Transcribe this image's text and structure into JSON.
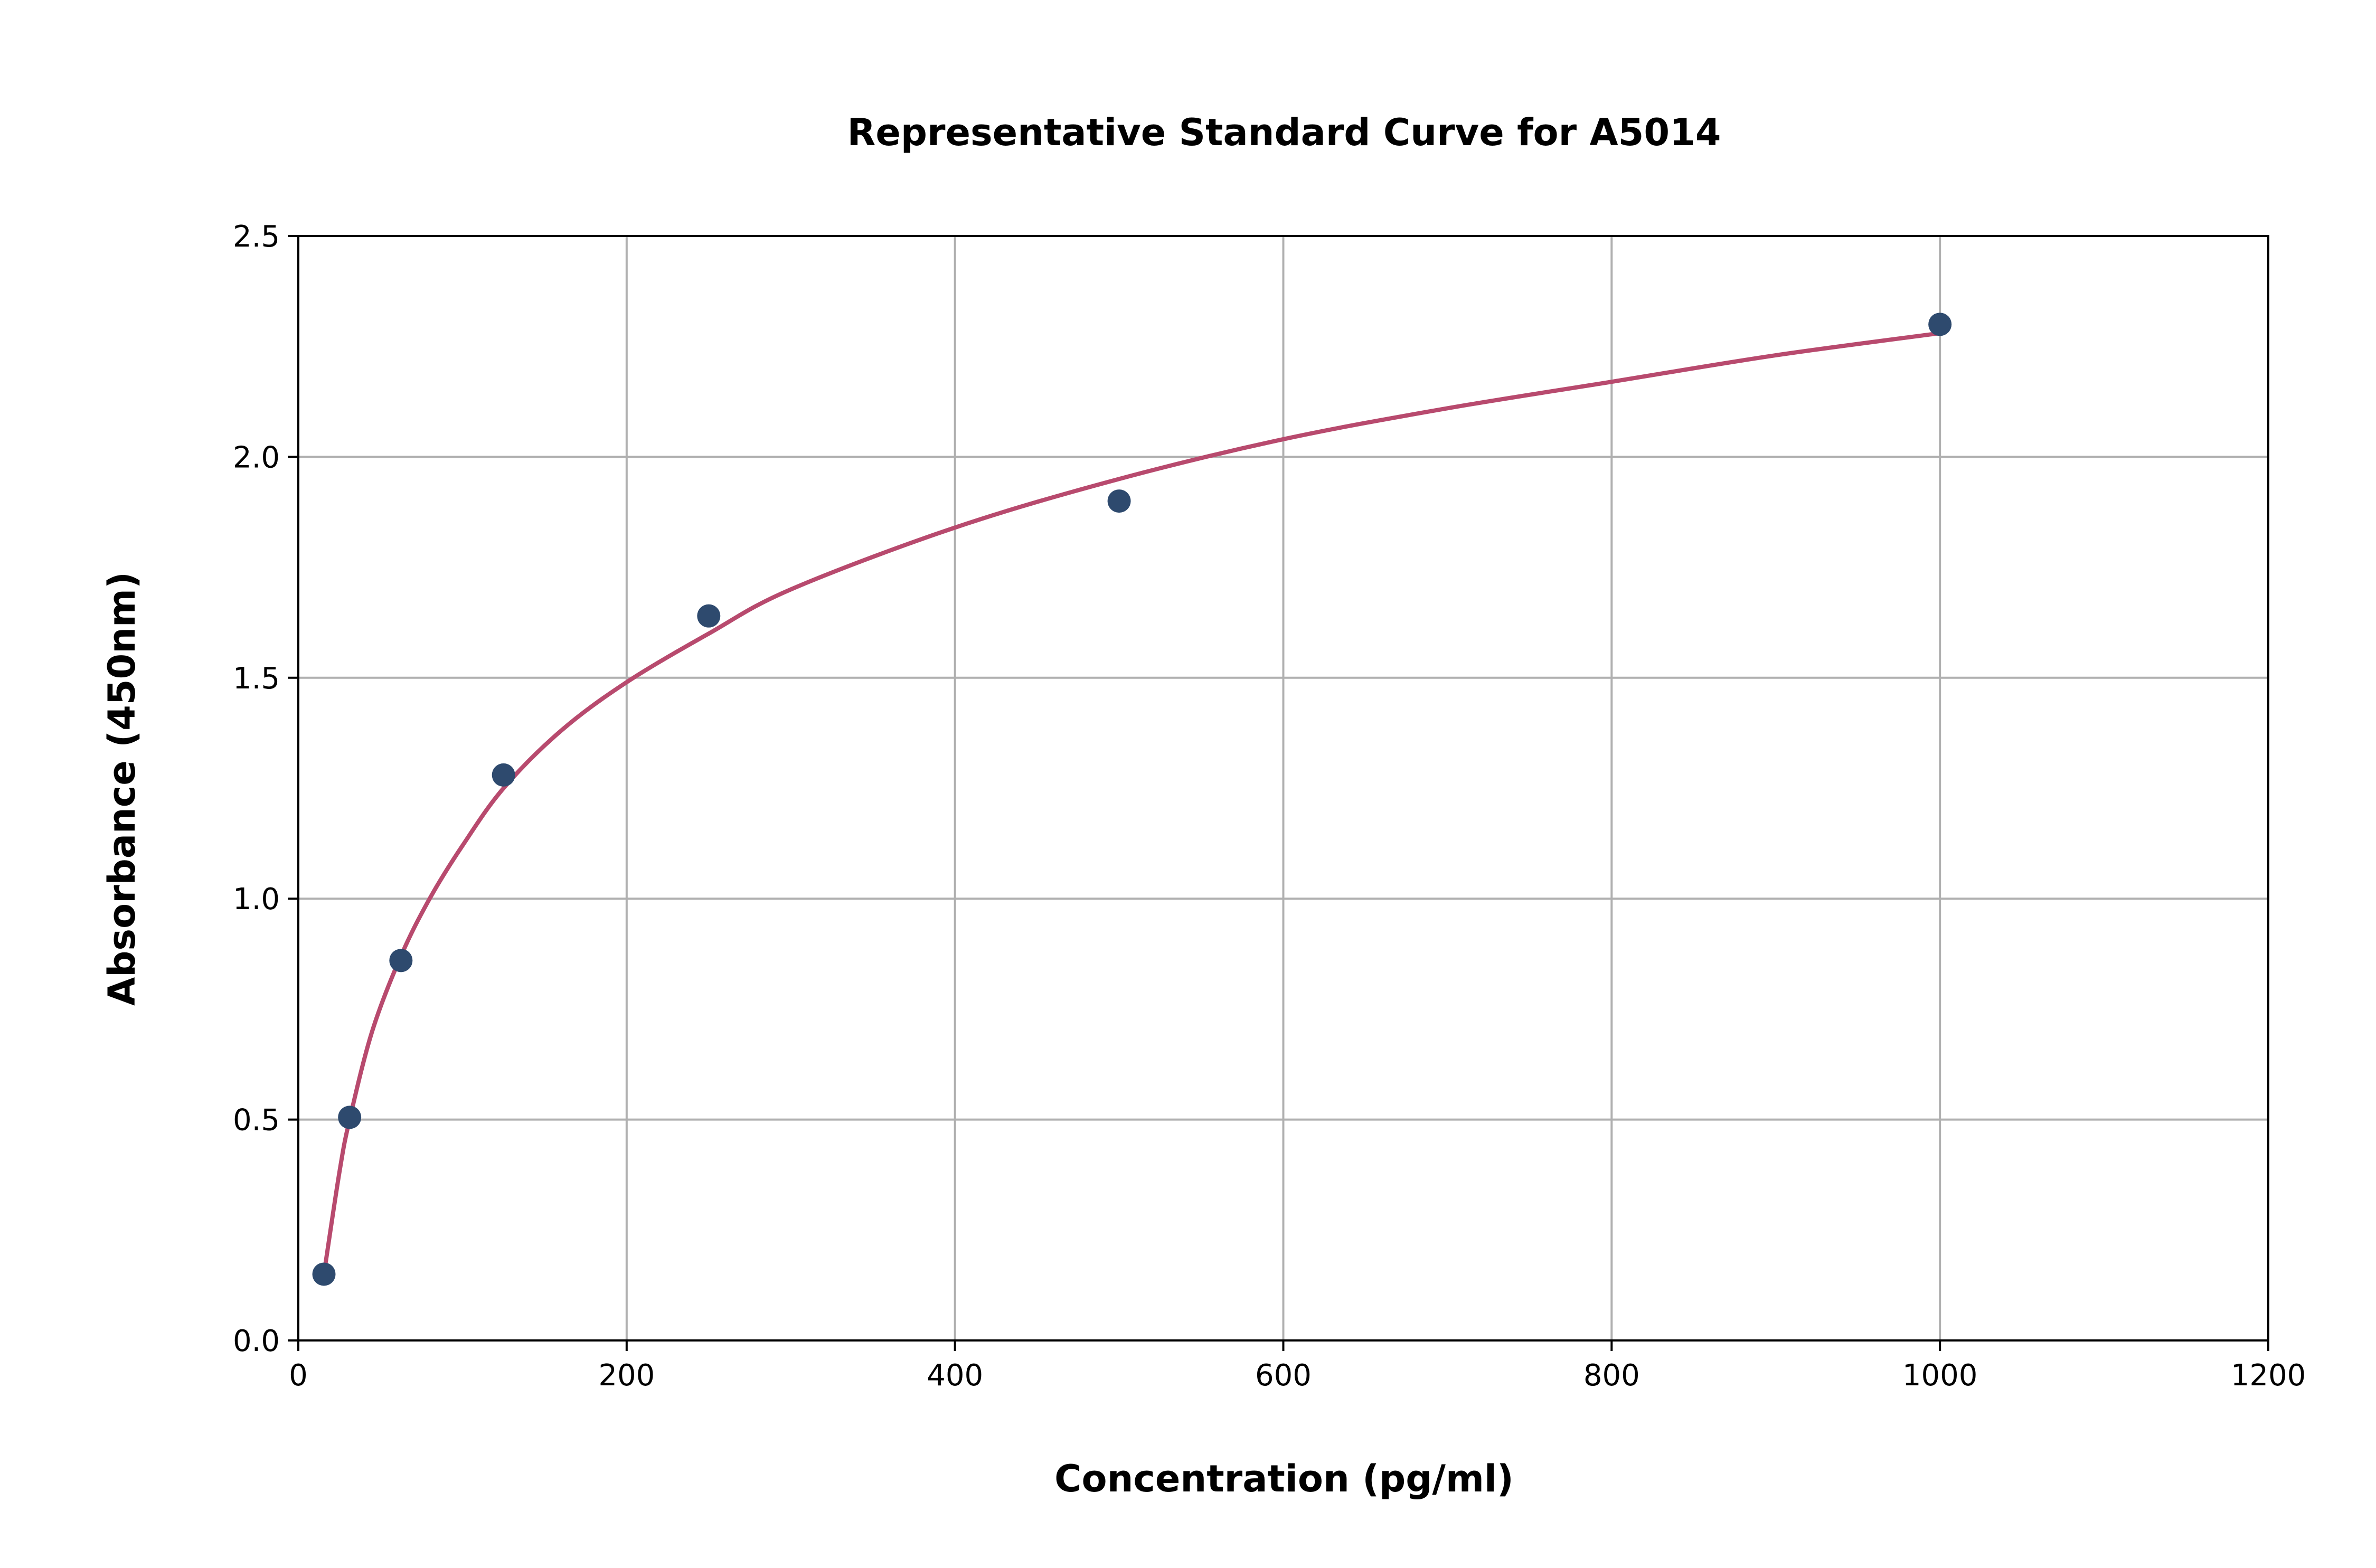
{
  "chart_data": {
    "type": "scatter",
    "title": "Representative Standard Curve for A5014",
    "xlabel": "Concentration (pg/ml)",
    "ylabel": "Absorbance (450nm)",
    "xlim": [
      0,
      1200
    ],
    "ylim": [
      0,
      2.5
    ],
    "xticks": [
      "0",
      "200",
      "400",
      "600",
      "800",
      "1000",
      "1200"
    ],
    "yticks": [
      "0.0",
      "0.5",
      "1.0",
      "1.5",
      "2.0",
      "2.5"
    ],
    "grid": true,
    "points": {
      "x": [
        15.6,
        31.25,
        62.5,
        125,
        250,
        500,
        1000
      ],
      "y": [
        0.15,
        0.505,
        0.86,
        1.28,
        1.64,
        1.9,
        2.3
      ],
      "color": "#2e4a6e"
    },
    "fit_curve": {
      "x": [
        15.6,
        25,
        31.25,
        45,
        62.5,
        80,
        100,
        125,
        160,
        200,
        250,
        300,
        400,
        500,
        600,
        700,
        800,
        900,
        1000
      ],
      "y": [
        0.15,
        0.38,
        0.5,
        0.7,
        0.87,
        1.0,
        1.12,
        1.25,
        1.38,
        1.49,
        1.6,
        1.7,
        1.84,
        1.95,
        2.04,
        2.11,
        2.17,
        2.23,
        2.28
      ],
      "color": "#b84a6e"
    }
  }
}
